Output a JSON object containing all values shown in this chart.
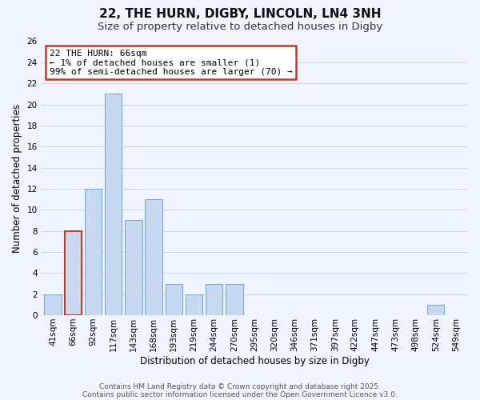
{
  "title": "22, THE HURN, DIGBY, LINCOLN, LN4 3NH",
  "subtitle": "Size of property relative to detached houses in Digby",
  "xlabel": "Distribution of detached houses by size in Digby",
  "ylabel": "Number of detached properties",
  "bin_labels": [
    "41sqm",
    "66sqm",
    "92sqm",
    "117sqm",
    "143sqm",
    "168sqm",
    "193sqm",
    "219sqm",
    "244sqm",
    "270sqm",
    "295sqm",
    "320sqm",
    "346sqm",
    "371sqm",
    "397sqm",
    "422sqm",
    "447sqm",
    "473sqm",
    "498sqm",
    "524sqm",
    "549sqm"
  ],
  "bar_values": [
    2,
    8,
    12,
    21,
    9,
    11,
    3,
    2,
    3,
    3,
    0,
    0,
    0,
    0,
    0,
    0,
    0,
    0,
    0,
    1,
    0
  ],
  "bar_color": "#c6d9f0",
  "bar_edge_color": "#7aadd4",
  "highlight_bar_index": 1,
  "highlight_color": "#c6d9f0",
  "highlight_edge_color": "#c0392b",
  "annotation_line1": "22 THE HURN: 66sqm",
  "annotation_line2": "← 1% of detached houses are smaller (1)",
  "annotation_line3": "99% of semi-detached houses are larger (70) →",
  "annotation_box_edge_color": "#c0392b",
  "annotation_box_facecolor": "#ffffff",
  "ylim": [
    0,
    26
  ],
  "yticks": [
    0,
    2,
    4,
    6,
    8,
    10,
    12,
    14,
    16,
    18,
    20,
    22,
    24,
    26
  ],
  "grid_color": "#cccccc",
  "background_color": "#f0f4ff",
  "footer_line1": "Contains HM Land Registry data © Crown copyright and database right 2025.",
  "footer_line2": "Contains public sector information licensed under the Open Government Licence v3.0.",
  "title_fontsize": 11,
  "subtitle_fontsize": 9.5,
  "axis_label_fontsize": 8.5,
  "tick_fontsize": 7.5,
  "annotation_fontsize": 8,
  "footer_fontsize": 6.5
}
